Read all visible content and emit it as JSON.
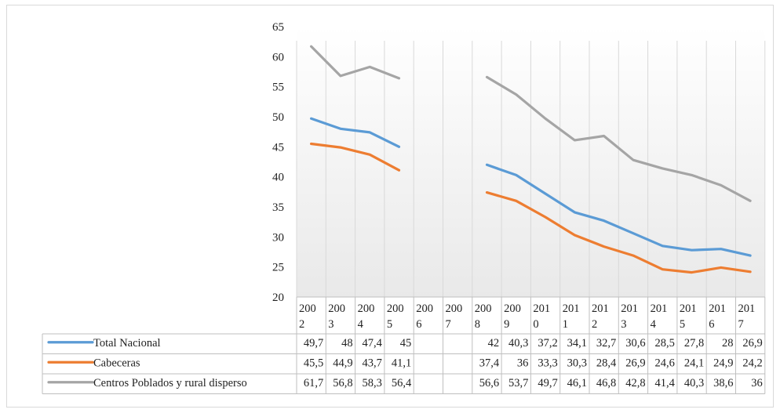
{
  "chart_data": {
    "type": "line",
    "title": "",
    "xlabel": "",
    "ylabel": "",
    "ylim": [
      20,
      65
    ],
    "yticks": [
      20,
      25,
      30,
      35,
      40,
      45,
      50,
      55,
      60,
      65
    ],
    "grid": "vertical",
    "legend_placement": "data-table-left",
    "categories": [
      "2002",
      "2003",
      "2004",
      "2005",
      "2006",
      "2007",
      "2008",
      "2009",
      "2010",
      "2011",
      "2012",
      "2013",
      "2014",
      "2015",
      "2016",
      "2017"
    ],
    "category_labels": [
      [
        "200",
        "2"
      ],
      [
        "200",
        "3"
      ],
      [
        "200",
        "4"
      ],
      [
        "200",
        "5"
      ],
      [
        "200",
        "6"
      ],
      [
        "200",
        "7"
      ],
      [
        "200",
        "8"
      ],
      [
        "200",
        "9"
      ],
      [
        "201",
        "0"
      ],
      [
        "201",
        "1"
      ],
      [
        "201",
        "2"
      ],
      [
        "201",
        "3"
      ],
      [
        "201",
        "4"
      ],
      [
        "201",
        "5"
      ],
      [
        "201",
        "6"
      ],
      [
        "201",
        "7"
      ]
    ],
    "series": [
      {
        "name": "Total Nacional",
        "color": "#5b9bd5",
        "values": [
          49.7,
          48,
          47.4,
          45,
          null,
          null,
          42,
          40.3,
          37.2,
          34.1,
          32.7,
          30.6,
          28.5,
          27.8,
          28,
          26.9
        ],
        "labels": [
          "49,7",
          "48",
          "47,4",
          "45",
          "",
          "",
          "42",
          "40,3",
          "37,2",
          "34,1",
          "32,7",
          "30,6",
          "28,5",
          "27,8",
          "28",
          "26,9"
        ]
      },
      {
        "name": "Cabeceras",
        "color": "#ed7d31",
        "values": [
          45.5,
          44.9,
          43.7,
          41.1,
          null,
          null,
          37.4,
          36,
          33.3,
          30.3,
          28.4,
          26.9,
          24.6,
          24.1,
          24.9,
          24.2
        ],
        "labels": [
          "45,5",
          "44,9",
          "43,7",
          "41,1",
          "",
          "",
          "37,4",
          "36",
          "33,3",
          "30,3",
          "28,4",
          "26,9",
          "24,6",
          "24,1",
          "24,9",
          "24,2"
        ]
      },
      {
        "name": "Centros Poblados y rural disperso",
        "color": "#a5a5a5",
        "values": [
          61.7,
          56.8,
          58.3,
          56.4,
          null,
          null,
          56.6,
          53.7,
          49.7,
          46.1,
          46.8,
          42.8,
          41.4,
          40.3,
          38.6,
          36
        ],
        "labels": [
          "61,7",
          "56,8",
          "58,3",
          "56,4",
          "",
          "",
          "56,6",
          "53,7",
          "49,7",
          "46,1",
          "46,8",
          "42,8",
          "41,4",
          "40,3",
          "38,6",
          "36"
        ]
      }
    ]
  }
}
